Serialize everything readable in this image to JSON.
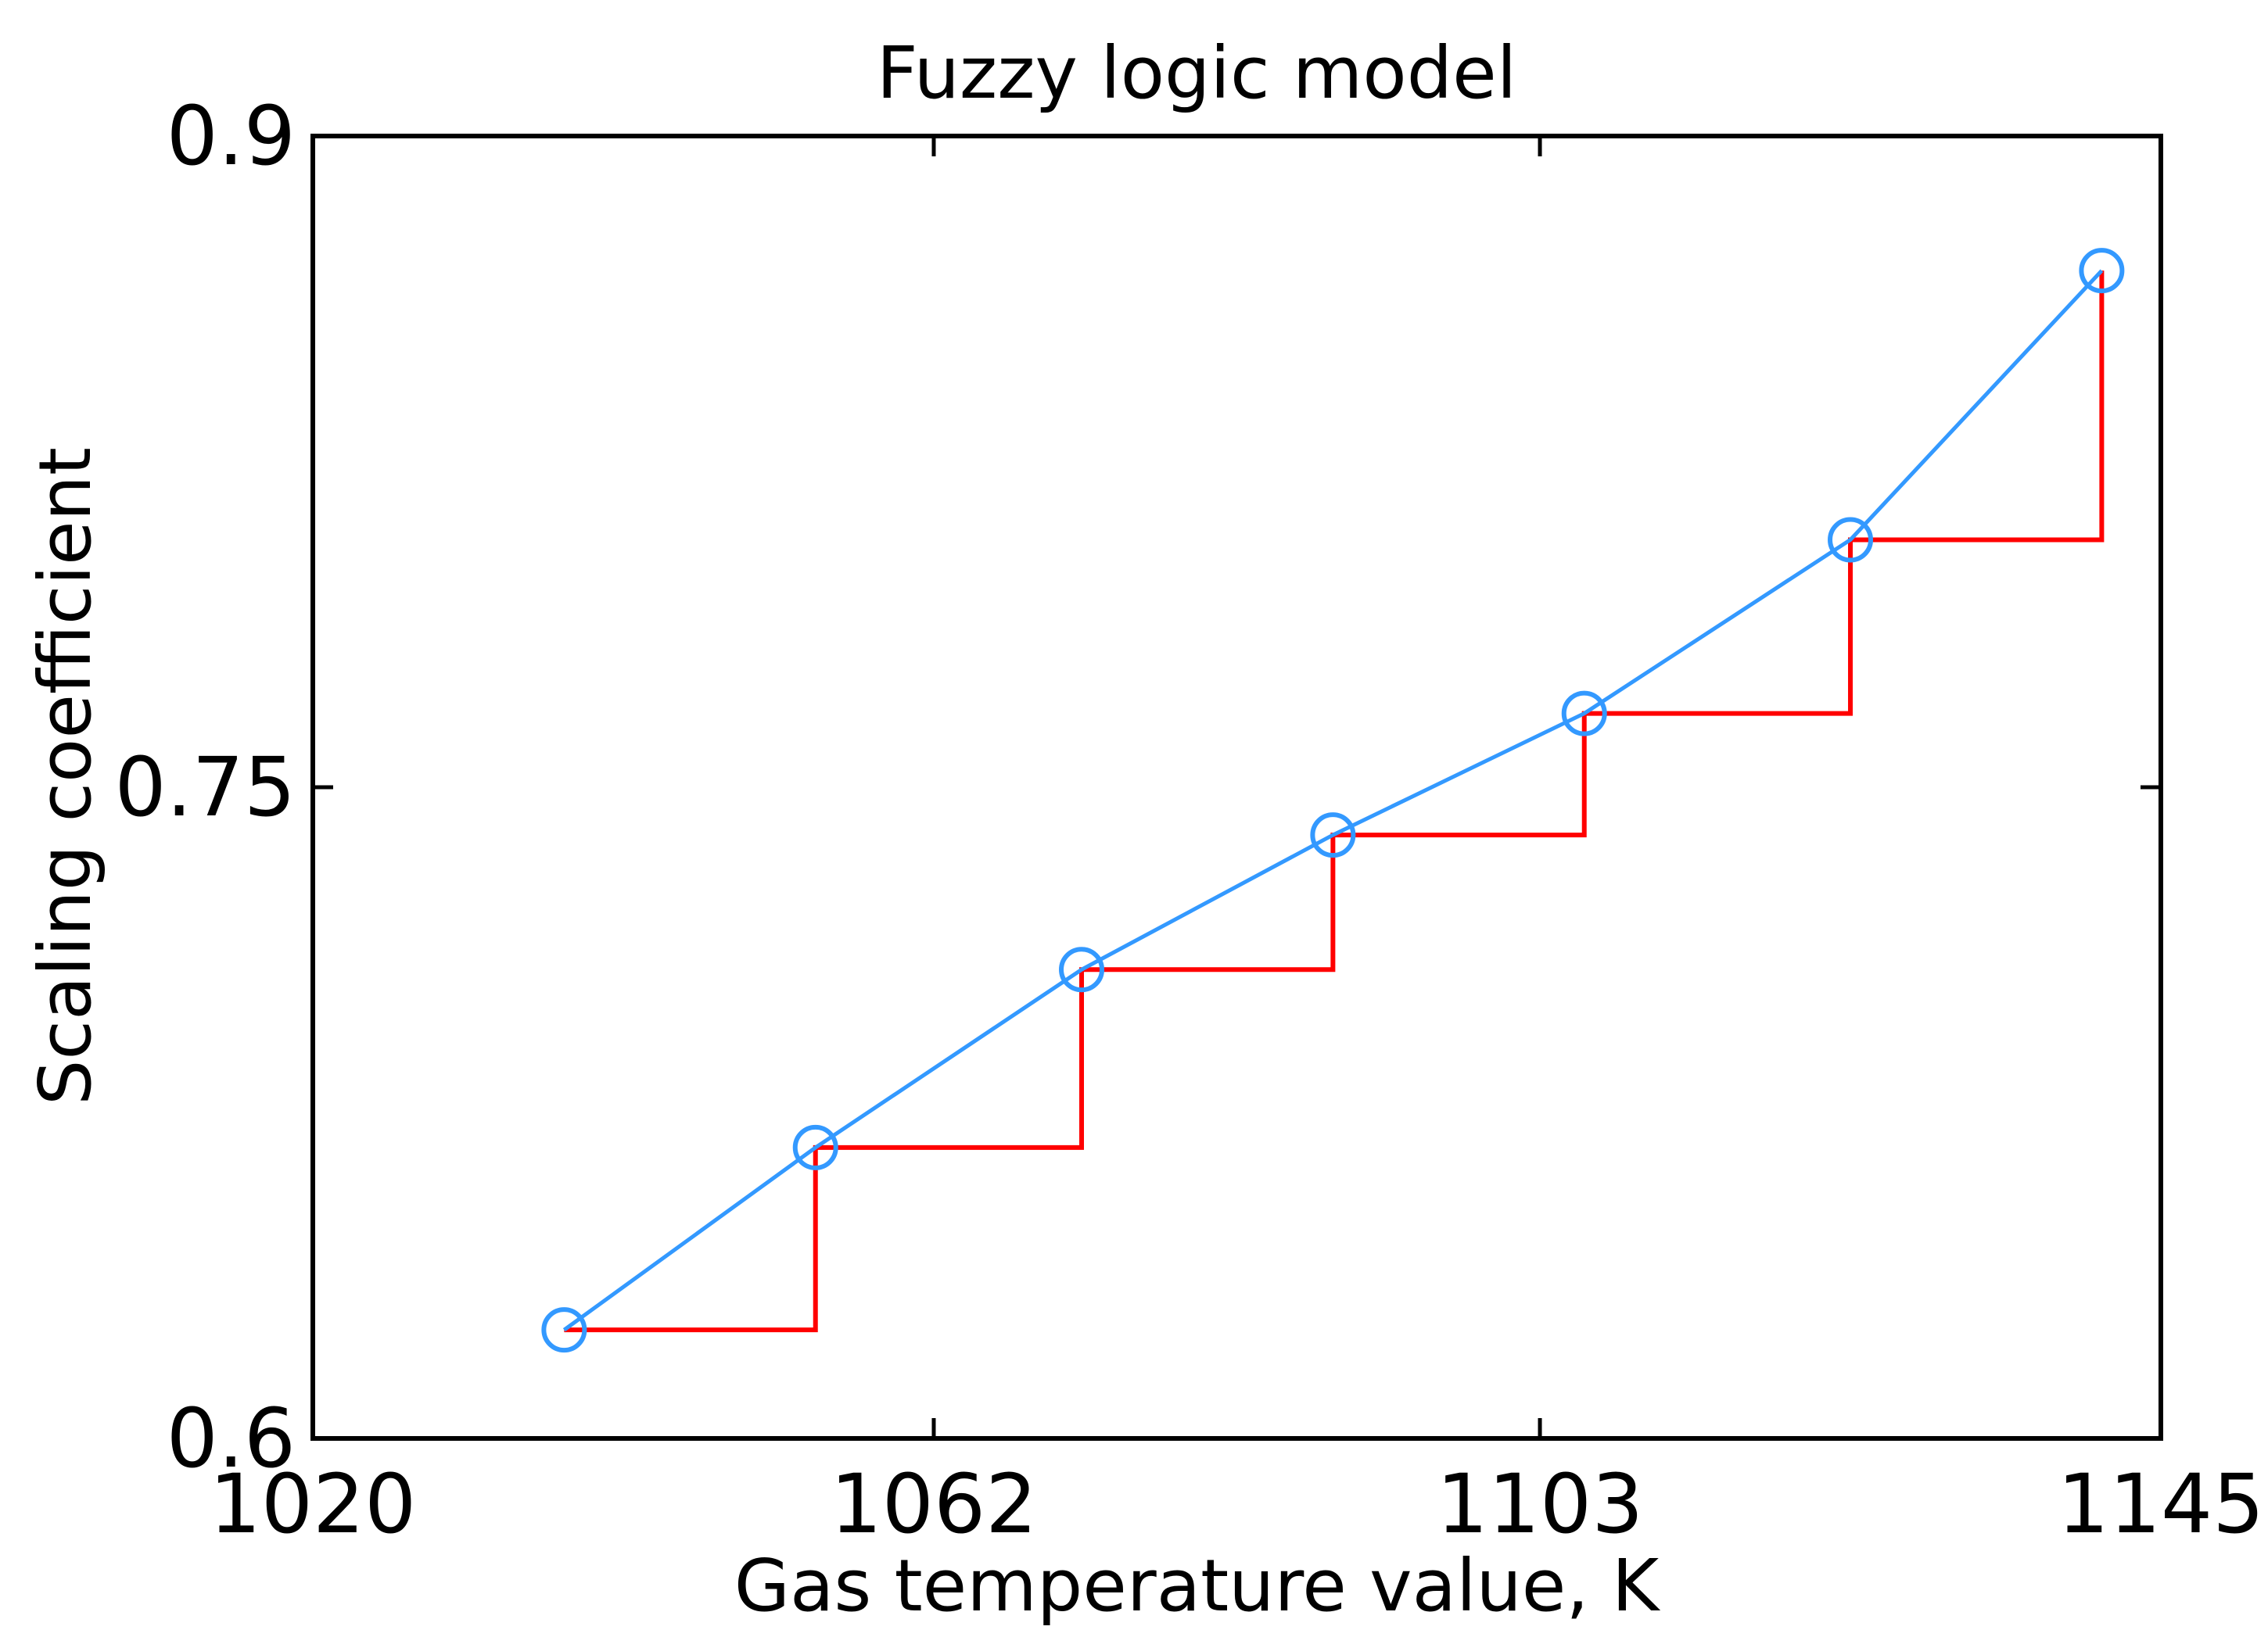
{
  "chart_data": {
    "type": "line",
    "title": "Fuzzy logic model",
    "xlabel": "Gas temperature value, K",
    "ylabel": "Scaling coefficient",
    "xlim": [
      1020,
      1145
    ],
    "ylim": [
      0.6,
      0.9
    ],
    "xticks": [
      1020,
      1062,
      1103,
      1145
    ],
    "xtick_labels": [
      "1020",
      "1062",
      "1103",
      "1145"
    ],
    "yticks": [
      0.6,
      0.75,
      0.9
    ],
    "ytick_labels": [
      "0.6",
      "0.75",
      "0.9"
    ],
    "grid": false,
    "series": [
      {
        "style": "line-with-circle-markers",
        "color": "#3399ff",
        "x": [
          1037,
          1054,
          1072,
          1089,
          1106,
          1124,
          1141
        ],
        "y": [
          0.625,
          0.667,
          0.708,
          0.739,
          0.767,
          0.807,
          0.869
        ]
      },
      {
        "style": "step",
        "color": "#ff0000",
        "x": [
          1037,
          1054,
          1072,
          1089,
          1106,
          1124,
          1141
        ],
        "y": [
          0.625,
          0.667,
          0.708,
          0.739,
          0.767,
          0.807,
          0.869
        ]
      }
    ]
  }
}
